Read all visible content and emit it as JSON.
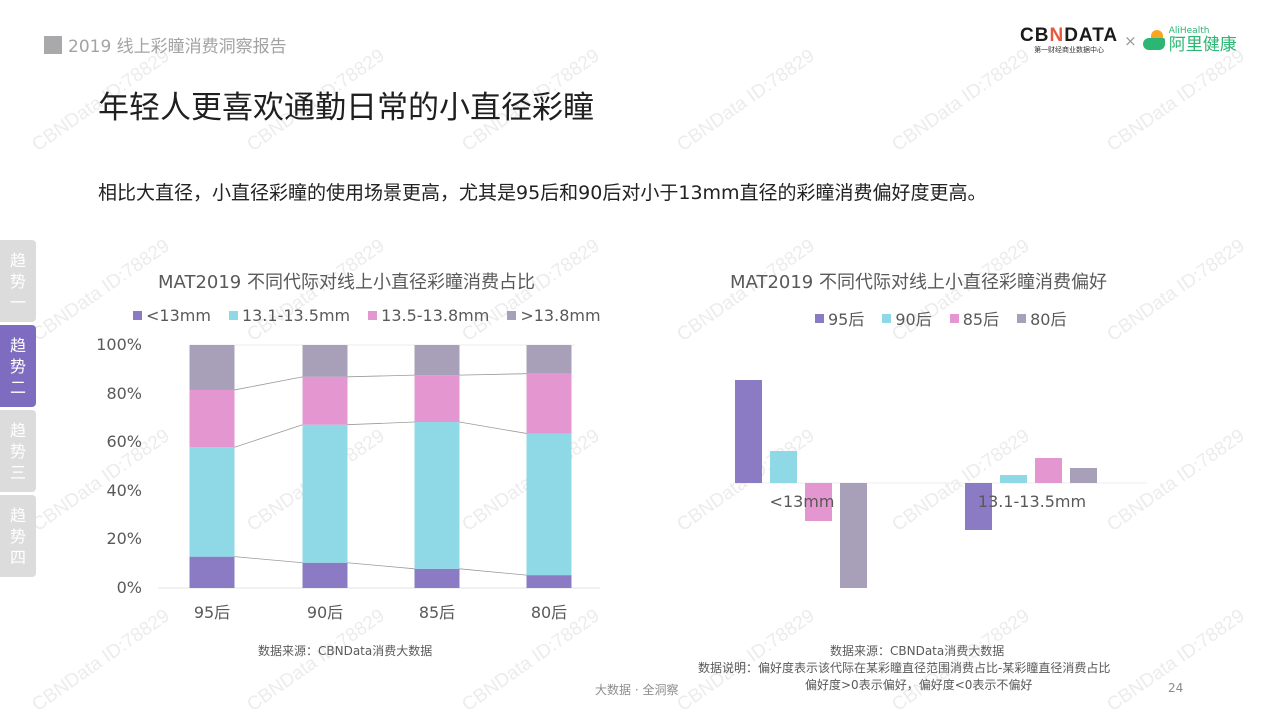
{
  "header": {
    "report_title": "2019 线上彩瞳消费洞察报告"
  },
  "logos": {
    "cbndata_text_a": "CB",
    "cbndata_text_x": "N",
    "cbndata_text_b": "DATA",
    "cbndata_sub": "第一财经商业数据中心",
    "times": "×",
    "alihealth_en": "AliHealth",
    "alihealth_cn": "阿里健康"
  },
  "page_title": "年轻人更喜欢通勤日常的小直径彩瞳",
  "subtitle": "相比大直径，小直径彩瞳的使用场景更高，尤其是95后和90后对小于13mm直径的彩瞳消费偏好度更高。",
  "side_tabs": [
    {
      "l1": "趋",
      "l2": "势",
      "l3": "一",
      "active": false
    },
    {
      "l1": "趋",
      "l2": "势",
      "l3": "二",
      "active": true
    },
    {
      "l1": "趋",
      "l2": "势",
      "l3": "三",
      "active": false
    },
    {
      "l1": "趋",
      "l2": "势",
      "l3": "四",
      "active": false
    }
  ],
  "colors": {
    "purple": "#8b7bc4",
    "cyan": "#8fd8e6",
    "pink": "#e396cf",
    "grey": "#a89fb8",
    "active_tab": "#7d6cbf"
  },
  "left_chart": {
    "source": "数据来源：CBNData消费大数据"
  },
  "right_chart": {
    "source": "数据来源：CBNData消费大数据",
    "note1": "数据说明：偏好度表示该代际在某彩瞳直径范围消费占比-某彩瞳直径消费占比",
    "note2": "偏好度>0表示偏好，偏好度<0表示不偏好"
  },
  "footer": {
    "slogan": "大数据 · 全洞察",
    "page_number": "24"
  },
  "watermark": "CBNData ID:78829",
  "chart_data": [
    {
      "type": "bar",
      "stacked": true,
      "normalized": true,
      "title": "MAT2019 不同代际对线上小直径彩瞳消费占比",
      "categories": [
        "95后",
        "90后",
        "85后",
        "80后"
      ],
      "series": [
        {
          "name": "<13mm",
          "color": "#8b7bc4",
          "values": [
            12.9,
            10.4,
            7.9,
            5.3
          ]
        },
        {
          "name": "13.1-13.5mm",
          "color": "#8fd8e6",
          "values": [
            45.0,
            56.8,
            60.4,
            58.3
          ]
        },
        {
          "name": "13.5-13.8mm",
          "color": "#e396cf",
          "values": [
            23.6,
            19.7,
            19.3,
            24.6
          ]
        },
        {
          "name": ">13.8mm",
          "color": "#a89fb8",
          "values": [
            18.5,
            13.1,
            12.4,
            11.8
          ]
        }
      ],
      "yticks": [
        "0%",
        "20%",
        "40%",
        "60%",
        "80%",
        "100%"
      ],
      "ylim": [
        0,
        100
      ],
      "ylabel": "",
      "xlabel": "",
      "series_lines": true,
      "legend_position": "top"
    },
    {
      "type": "bar",
      "title": "MAT2019 不同代际对线上小直径彩瞳消费偏好",
      "categories": [
        "<13mm",
        "13.1-13.5mm"
      ],
      "series": [
        {
          "name": "95后",
          "color": "#8b7bc4",
          "values": [
            103,
            -47
          ]
        },
        {
          "name": "90后",
          "color": "#8fd8e6",
          "values": [
            32,
            8
          ]
        },
        {
          "name": "85后",
          "color": "#e396cf",
          "values": [
            -38,
            25
          ]
        },
        {
          "name": "80后",
          "color": "#a89fb8",
          "values": [
            -105,
            15
          ]
        }
      ],
      "value_unit": "relative (no axis shown)",
      "ylabel": "",
      "xlabel": "",
      "legend_position": "top"
    }
  ]
}
